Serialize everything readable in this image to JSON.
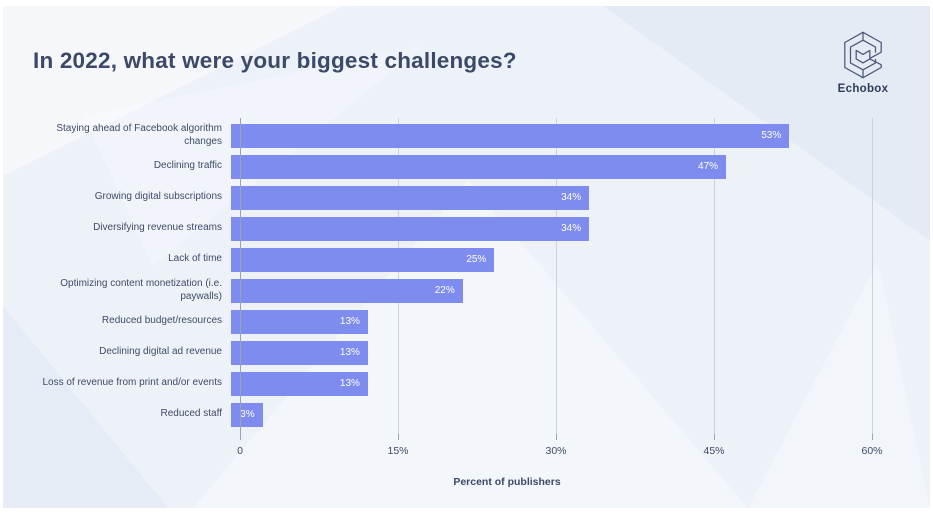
{
  "title": "In 2022, what were your biggest challenges?",
  "brand": {
    "name": "Echobox"
  },
  "chart_data": {
    "type": "bar",
    "orientation": "horizontal",
    "title": "In 2022, what were your biggest challenges?",
    "categories": [
      "Staying ahead of Facebook algorithm changes",
      "Declining traffic",
      "Growing digital subscriptions",
      "Diversifying revenue streams",
      "Lack of time",
      "Optimizing content monetization (i.e. paywalls)",
      "Reduced budget/resources",
      "Declining digital ad revenue",
      "Loss of revenue from print and/or events",
      "Reduced staff"
    ],
    "values": [
      53,
      47,
      34,
      34,
      25,
      22,
      13,
      13,
      13,
      3
    ],
    "value_labels": [
      "53%",
      "47%",
      "34%",
      "34%",
      "25%",
      "22%",
      "13%",
      "13%",
      "13%",
      "3%"
    ],
    "xlabel": "Percent of publishers",
    "ylabel": "",
    "xlim": [
      0,
      60
    ],
    "xticks": [
      {
        "value": 0,
        "label": "0"
      },
      {
        "value": 15,
        "label": "15%"
      },
      {
        "value": 30,
        "label": "30%"
      },
      {
        "value": 45,
        "label": "45%"
      },
      {
        "value": 60,
        "label": "60%"
      }
    ],
    "grid": "vertical",
    "legend": "none"
  },
  "colors": {
    "bar": "#7F8CEF",
    "background": "#EDF1F8",
    "title_text": "#3B4A68",
    "category_text": "#3E4C69",
    "gridline": "#CBD1DD",
    "axis": "#99A2B5",
    "value_label": "#FFFFFF"
  }
}
